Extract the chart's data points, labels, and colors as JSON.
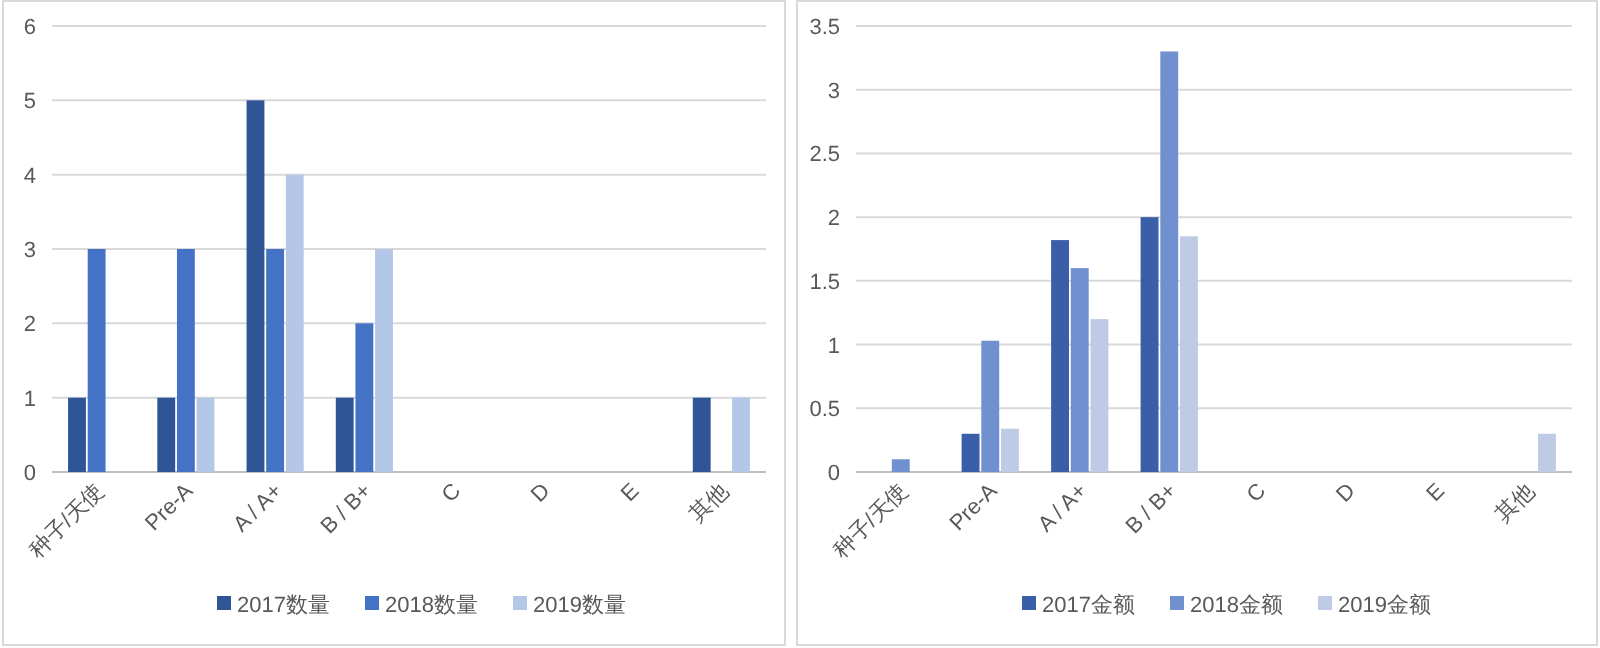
{
  "chart_data": [
    {
      "type": "bar",
      "categories": [
        "种子/天使",
        "Pre-A",
        "A / A+",
        "B / B+",
        "C",
        "D",
        "E",
        "其他"
      ],
      "series": [
        {
          "name": "2017数量",
          "color": "#2f5597",
          "values": [
            1,
            1,
            5,
            1,
            0,
            0,
            0,
            1
          ]
        },
        {
          "name": "2018数量",
          "color": "#4472c4",
          "values": [
            3,
            3,
            3,
            2,
            0,
            0,
            0,
            0
          ]
        },
        {
          "name": "2019数量",
          "color": "#b4c7e7",
          "values": [
            0,
            1,
            4,
            3,
            0,
            0,
            0,
            1
          ]
        }
      ],
      "ylim": [
        0,
        6
      ],
      "yticks": [
        0,
        1,
        2,
        3,
        4,
        5,
        6
      ],
      "grid": "y",
      "legend": "bottom"
    },
    {
      "type": "bar",
      "categories": [
        "种子/天使",
        "Pre-A",
        "A / A+",
        "B / B+",
        "C",
        "D",
        "E",
        "其他"
      ],
      "series": [
        {
          "name": "2017金额",
          "color": "#3a5ea8",
          "values": [
            0,
            0.3,
            1.82,
            2.0,
            0,
            0,
            0,
            0
          ]
        },
        {
          "name": "2018金额",
          "color": "#7190d0",
          "values": [
            0.1,
            1.03,
            1.6,
            3.3,
            0,
            0,
            0,
            0
          ]
        },
        {
          "name": "2019金额",
          "color": "#bfcbe6",
          "values": [
            0,
            0.34,
            1.2,
            1.85,
            0,
            0,
            0,
            0.3
          ]
        }
      ],
      "ylim": [
        0,
        3.5
      ],
      "yticks": [
        0,
        0.5,
        1,
        1.5,
        2,
        2.5,
        3,
        3.5
      ],
      "grid": "y",
      "legend": "bottom"
    }
  ]
}
